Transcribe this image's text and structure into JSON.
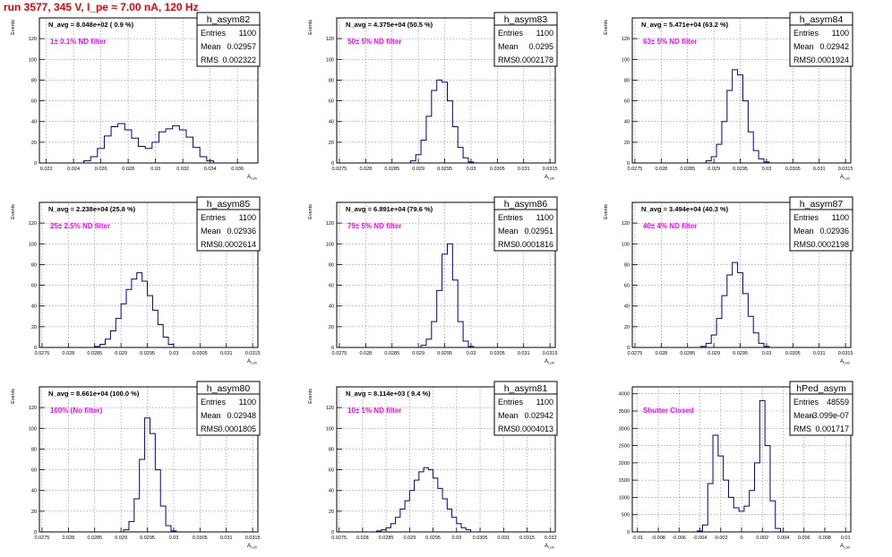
{
  "run_title": "run 3577,   345 V, I_pe ≈ 7.00 nA, 120 Hz",
  "colors": {
    "histogram": "#00008b",
    "filter_note": "#ff00ff",
    "title": "#e8000b",
    "grid": "#888888"
  },
  "stats_labels": {
    "entries": "Entries",
    "mean": "Mean",
    "rms": "RMS"
  },
  "chart_data": [
    {
      "type": "histogram",
      "name": "h_asym82",
      "ylabel": "Events",
      "xlabel": "A",
      "header": "N_avg = 8.048e+02 ( 0.9 %)",
      "note": "1± 0.1% ND filter",
      "stats": {
        "entries": "1100",
        "mean": "0.02957",
        "rms": "0.002322"
      },
      "xlim": [
        0.0215,
        0.0375
      ],
      "ylim": [
        0,
        140
      ],
      "x_ticks": [
        0.022,
        0.024,
        0.026,
        0.028,
        0.03,
        0.032,
        0.034,
        0.036
      ],
      "x_tick_labels": [
        "0.022",
        "0.024",
        "0.026",
        "0.028",
        "0.03",
        "0.032",
        "0.034",
        "0.036"
      ],
      "y_ticks": [
        0,
        20,
        40,
        60,
        80,
        100,
        120
      ],
      "y_tick_labels": [
        "0",
        "20",
        "40",
        "60",
        "80",
        "100",
        "120"
      ],
      "x": [
        0.025,
        0.0255,
        0.026,
        0.0265,
        0.027,
        0.0275,
        0.028,
        0.0285,
        0.029,
        0.0295,
        0.03,
        0.0305,
        0.031,
        0.0315,
        0.032,
        0.0325,
        0.033,
        0.0335,
        0.034
      ],
      "y": [
        2,
        6,
        14,
        26,
        35,
        38,
        32,
        24,
        16,
        14,
        20,
        30,
        33,
        36,
        32,
        25,
        15,
        6,
        2
      ]
    },
    {
      "type": "histogram",
      "name": "h_asym83",
      "ylabel": "Events",
      "xlabel": "A",
      "header": "N_avg = 4.375e+04 (50.5 %)",
      "note": "50± 5% ND filter",
      "stats": {
        "entries": "1100",
        "mean": "0.0295",
        "rms": "0.0002178"
      },
      "xlim": [
        0.02745,
        0.0316
      ],
      "ylim": [
        0,
        140
      ],
      "x_ticks": [
        0.0275,
        0.028,
        0.0285,
        0.029,
        0.0295,
        0.03,
        0.0305,
        0.031,
        0.0315
      ],
      "x_tick_labels": [
        "0.0275",
        "0.028",
        "0.0285",
        "0.029",
        "0.0295",
        "0.03",
        "0.0305",
        "0.031",
        "0.0315"
      ],
      "y_ticks": [
        0,
        20,
        40,
        60,
        80,
        100,
        120
      ],
      "y_tick_labels": [
        "0",
        "20",
        "40",
        "60",
        "80",
        "100",
        "120"
      ],
      "x": [
        0.0289,
        0.029,
        0.0291,
        0.0292,
        0.0293,
        0.0294,
        0.0295,
        0.0296,
        0.0297,
        0.0298,
        0.0299,
        0.03
      ],
      "y": [
        2,
        8,
        22,
        45,
        70,
        80,
        78,
        60,
        35,
        15,
        5,
        1
      ]
    },
    {
      "type": "histogram",
      "name": "h_asym84",
      "ylabel": "Events",
      "xlabel": "A",
      "header": "N_avg = 5.471e+04 (63.2 %)",
      "note": "63± 5% ND filter",
      "stats": {
        "entries": "1100",
        "mean": "0.02942",
        "rms": "0.0001924"
      },
      "xlim": [
        0.02745,
        0.0316
      ],
      "ylim": [
        0,
        140
      ],
      "x_ticks": [
        0.0275,
        0.028,
        0.0285,
        0.029,
        0.0295,
        0.03,
        0.0305,
        0.031,
        0.0315
      ],
      "x_tick_labels": [
        "0.0275",
        "0.028",
        "0.0285",
        "0.029",
        "0.0295",
        "0.03",
        "0.0305",
        "0.031",
        "0.0315"
      ],
      "y_ticks": [
        0,
        20,
        40,
        60,
        80,
        100,
        120
      ],
      "y_tick_labels": [
        "0",
        "20",
        "40",
        "60",
        "80",
        "100",
        "120"
      ],
      "x": [
        0.0289,
        0.029,
        0.0291,
        0.0292,
        0.0293,
        0.0294,
        0.0295,
        0.0296,
        0.0297,
        0.0298,
        0.0299,
        0.03
      ],
      "y": [
        2,
        6,
        18,
        40,
        70,
        90,
        85,
        60,
        30,
        12,
        4,
        1
      ]
    },
    {
      "type": "histogram",
      "name": "h_asym85",
      "ylabel": "Events",
      "xlabel": "A",
      "header": "N_avg = 2.238e+04 (25.8 %)",
      "note": "25± 2.5% ND filter",
      "stats": {
        "entries": "1100",
        "mean": "0.02936",
        "rms": "0.0002614"
      },
      "xlim": [
        0.02745,
        0.0316
      ],
      "ylim": [
        0,
        140
      ],
      "x_ticks": [
        0.0275,
        0.028,
        0.0285,
        0.029,
        0.0295,
        0.03,
        0.0305,
        0.031,
        0.0315
      ],
      "x_tick_labels": [
        "0.0275",
        "0.028",
        "0.0285",
        "0.029",
        "0.0295",
        "0.03",
        "0.0305",
        "0.031",
        "0.0315"
      ],
      "y_ticks": [
        0,
        20,
        40,
        60,
        80,
        100,
        120
      ],
      "y_tick_labels": [
        "0",
        "20",
        "40",
        "60",
        "80",
        "100",
        "120"
      ],
      "x": [
        0.02855,
        0.02865,
        0.02875,
        0.02885,
        0.02895,
        0.02905,
        0.02915,
        0.02925,
        0.02935,
        0.02945,
        0.02955,
        0.02965,
        0.02975,
        0.02985,
        0.02995
      ],
      "y": [
        1,
        3,
        8,
        16,
        28,
        42,
        56,
        66,
        72,
        64,
        50,
        36,
        22,
        10,
        3
      ]
    },
    {
      "type": "histogram",
      "name": "h_asym86",
      "ylabel": "Events",
      "xlabel": "A",
      "header": "N_avg = 6.891e+04 (79.6 %)",
      "note": "79± 5% ND filter",
      "stats": {
        "entries": "1100",
        "mean": "0.02951",
        "rms": "0.0001816"
      },
      "xlim": [
        0.02745,
        0.0316
      ],
      "ylim": [
        0,
        140
      ],
      "x_ticks": [
        0.0275,
        0.028,
        0.0285,
        0.029,
        0.0295,
        0.03,
        0.0305,
        0.031,
        0.0315
      ],
      "x_tick_labels": [
        "0.0275",
        "0.028",
        "0.0285",
        "0.029",
        "0.0295",
        "0.03",
        "0.0305",
        "0.031",
        "0.0315"
      ],
      "y_ticks": [
        0,
        20,
        40,
        60,
        80,
        100,
        120
      ],
      "y_tick_labels": [
        "0",
        "20",
        "40",
        "60",
        "80",
        "100",
        "120"
      ],
      "x": [
        0.0291,
        0.0292,
        0.0293,
        0.0294,
        0.0295,
        0.0296,
        0.0297,
        0.0298,
        0.0299,
        0.03
      ],
      "y": [
        2,
        8,
        25,
        55,
        90,
        100,
        65,
        25,
        6,
        1
      ]
    },
    {
      "type": "histogram",
      "name": "h_asym87",
      "ylabel": "Events",
      "xlabel": "A",
      "header": "N_avg = 3.494e+04 (40.3 %)",
      "note": "40± 4% ND filter",
      "stats": {
        "entries": "1100",
        "mean": "0.02936",
        "rms": "0.0002198"
      },
      "xlim": [
        0.02745,
        0.0316
      ],
      "ylim": [
        0,
        140
      ],
      "x_ticks": [
        0.0275,
        0.028,
        0.0285,
        0.029,
        0.0295,
        0.03,
        0.0305,
        0.031,
        0.0315
      ],
      "x_tick_labels": [
        "0.0275",
        "0.028",
        "0.0285",
        "0.029",
        "0.0295",
        "0.03",
        "0.0305",
        "0.031",
        "0.0315"
      ],
      "y_ticks": [
        0,
        20,
        40,
        60,
        80,
        100,
        120
      ],
      "y_tick_labels": [
        "0",
        "20",
        "40",
        "60",
        "80",
        "100",
        "120"
      ],
      "x": [
        0.0288,
        0.0289,
        0.029,
        0.0291,
        0.0292,
        0.0293,
        0.0294,
        0.0295,
        0.0296,
        0.0297,
        0.0298,
        0.0299,
        0.03
      ],
      "y": [
        1,
        4,
        12,
        28,
        50,
        70,
        82,
        72,
        52,
        30,
        14,
        4,
        1
      ]
    },
    {
      "type": "histogram",
      "name": "h_asym80",
      "ylabel": "Events",
      "xlabel": "A",
      "header": "N_avg = 8.661e+04 (100.0 %)",
      "note": "100% (No filter)",
      "stats": {
        "entries": "1100",
        "mean": "0.02948",
        "rms": "0.0001805"
      },
      "xlim": [
        0.02745,
        0.0316
      ],
      "ylim": [
        0,
        140
      ],
      "x_ticks": [
        0.0275,
        0.028,
        0.0285,
        0.029,
        0.0295,
        0.03,
        0.0305,
        0.031,
        0.0315
      ],
      "x_tick_labels": [
        "0.0275",
        "0.028",
        "0.0285",
        "0.029",
        "0.0295",
        "0.03",
        "0.0305",
        "0.031",
        "0.0315"
      ],
      "y_ticks": [
        0,
        20,
        40,
        60,
        80,
        100,
        120
      ],
      "y_tick_labels": [
        "0",
        "20",
        "40",
        "60",
        "80",
        "100",
        "120"
      ],
      "x": [
        0.0291,
        0.0292,
        0.0293,
        0.0294,
        0.0295,
        0.0296,
        0.0297,
        0.0298,
        0.0299,
        0.03
      ],
      "y": [
        2,
        10,
        32,
        70,
        110,
        95,
        60,
        25,
        6,
        1
      ]
    },
    {
      "type": "histogram",
      "name": "h_asym81",
      "ylabel": "Events",
      "xlabel": "A",
      "header": "N_avg = 8.114e+03 ( 9.4 %)",
      "note": "10± 1% ND filter",
      "stats": {
        "entries": "1100",
        "mean": "0.02942",
        "rms": "0.0004013"
      },
      "xlim": [
        0.02745,
        0.0321
      ],
      "ylim": [
        0,
        140
      ],
      "x_ticks": [
        0.0275,
        0.028,
        0.0285,
        0.029,
        0.0295,
        0.03,
        0.0305,
        0.031,
        0.0315,
        0.032
      ],
      "x_tick_labels": [
        "0.0275",
        "0.028",
        "0.0285",
        "0.029",
        "0.0295",
        "0.03",
        "0.0305",
        "0.031",
        "0.0315",
        "0.032"
      ],
      "y_ticks": [
        0,
        20,
        40,
        60,
        80,
        100,
        120
      ],
      "y_tick_labels": [
        "0",
        "20",
        "40",
        "60",
        "80",
        "100",
        "120"
      ],
      "x": [
        0.02835,
        0.02845,
        0.02855,
        0.02865,
        0.02875,
        0.02885,
        0.02895,
        0.02905,
        0.02915,
        0.02925,
        0.02935,
        0.02945,
        0.02955,
        0.02965,
        0.02975,
        0.02985,
        0.02995,
        0.03005,
        0.03015,
        0.03025
      ],
      "y": [
        1,
        2,
        4,
        8,
        14,
        22,
        30,
        40,
        50,
        58,
        62,
        60,
        52,
        42,
        32,
        22,
        14,
        8,
        4,
        2
      ]
    },
    {
      "type": "histogram",
      "name": "hPed_asym",
      "ylabel": "",
      "xlabel": "A",
      "header": "",
      "note": "Shutter Closed",
      "stats": {
        "entries": "48559",
        "mean": "-3.099e-07",
        "rms": "0.001717"
      },
      "xlim": [
        -0.0105,
        0.0105
      ],
      "ylim": [
        0,
        4200
      ],
      "x_ticks": [
        -0.01,
        -0.008,
        -0.006,
        -0.004,
        -0.002,
        0,
        0.002,
        0.004,
        0.006,
        0.008,
        0.01
      ],
      "x_tick_labels": [
        "-0.01",
        "-0.008",
        "-0.006",
        "-0.004",
        "-0.002",
        "0",
        "0.002",
        "0.004",
        "0.006",
        "0.008",
        "0.01"
      ],
      "y_ticks": [
        0,
        500,
        1000,
        1500,
        2000,
        2500,
        3000,
        3500,
        4000
      ],
      "y_tick_labels": [
        "0",
        "500",
        "1000",
        "1500",
        "2000",
        "2500",
        "3000",
        "3500",
        "4000"
      ],
      "x": [
        -0.004,
        -0.0035,
        -0.003,
        -0.0025,
        -0.002,
        -0.0015,
        -0.001,
        -0.0005,
        0,
        0.0005,
        0.001,
        0.0015,
        0.002,
        0.0025,
        0.003,
        0.0035
      ],
      "y": [
        30,
        200,
        1400,
        2800,
        2200,
        1500,
        1000,
        700,
        600,
        750,
        1200,
        2000,
        3800,
        2500,
        900,
        100
      ]
    }
  ]
}
